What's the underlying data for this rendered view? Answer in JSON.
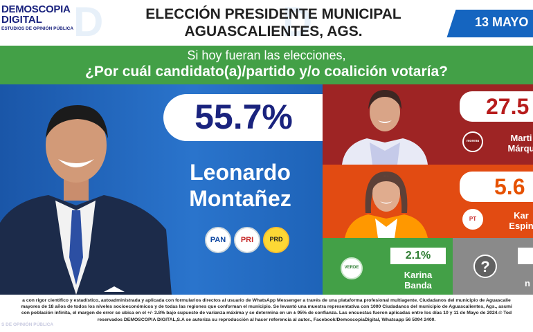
{
  "header": {
    "logo_line1": "DEMOSCOPIA",
    "logo_line2": "DIGITAL",
    "logo_line3": "ESTUDIOS DE OPINIÓN PÚBLICA",
    "title_line1": "ELECCIÓN PRESIDENTE MUNICIPAL",
    "title_line2": "AGUASCALIENTES, AGS.",
    "date": "13 MAYO"
  },
  "question": {
    "line1": "Si hoy fueran las elecciones,",
    "line2": "¿Por cuál candidato(a)/partido y/o coalición votaría?"
  },
  "chart_data": {
    "type": "bar",
    "title": "ELECCIÓN PRESIDENTE MUNICIPAL AGUASCALIENTES, AGS.",
    "categories": [
      "Leonardo Montañez",
      "Martha Márquez",
      "Karla Espinosa",
      "Karina Banda",
      "no sabe"
    ],
    "values": [
      55.7,
      27.5,
      5.6,
      2.1,
      null
    ],
    "value_labels": [
      "55.7%",
      "27.5",
      "5.6",
      "2.1%",
      ""
    ],
    "colors": [
      "#1e63b8",
      "#9e2424",
      "#e24b12",
      "#43a047",
      "#8a8a8a"
    ]
  },
  "candidates": {
    "leader": {
      "pct": "55.7%",
      "name_line1": "Leonardo",
      "name_line2": "Montañez",
      "parties": [
        "PAN",
        "PRI",
        "PRD"
      ]
    },
    "second": {
      "pct": "27.5",
      "name_line1": "Marti",
      "name_line2": "Márqu",
      "party": "morena"
    },
    "third": {
      "pct": "5.6",
      "name_line1": "Kar",
      "name_line2": "Espin",
      "party": "PT"
    },
    "fourth": {
      "pct": "2.1%",
      "name_line1": "Karina",
      "name_line2": "Banda",
      "party": "VERDE"
    },
    "fifth": {
      "icon": "?",
      "name_line1": "n"
    }
  },
  "footer": {
    "line1": "a con rigor científico y estadístico, autoadministrada y aplicada con formularios directos al usuario de WhatsApp Messenger a través de una plataforma profesional multiagente. Ciudadanos del municipio de Aguascalie",
    "line2": "mayores de 18 años de todos los niveles socioeconómicos y de todas las regiones que conforman el municipio. Se levantó una muestra representativa con 1000 Ciudadanos del municipio de Aguascalientes, Ags., asumi",
    "line3": "con población infinita, el margen de error se ubica en el +/- 3.8% bajo supuesto de varianza máxima y se determina en un ± 95% de confianza. Las encuestas fueron aplicadas entre los días 10 y 11 de Mayo de 2024.© Tod",
    "line4": "reservados DEMOSCOPIA DIGITAL,S.A se autoriza su reproducción al hacer referencia al autor., Facebook/DemoscopiaDigital, Whatsapp 56 5094 2400.",
    "wm_text": "S DE OPINIÓN PÚBLICA"
  },
  "colors": {
    "navy": "#1a237e",
    "blue_panel": "#1e63b8",
    "green_banner": "#43a047",
    "date_tab": "#1565c0"
  }
}
